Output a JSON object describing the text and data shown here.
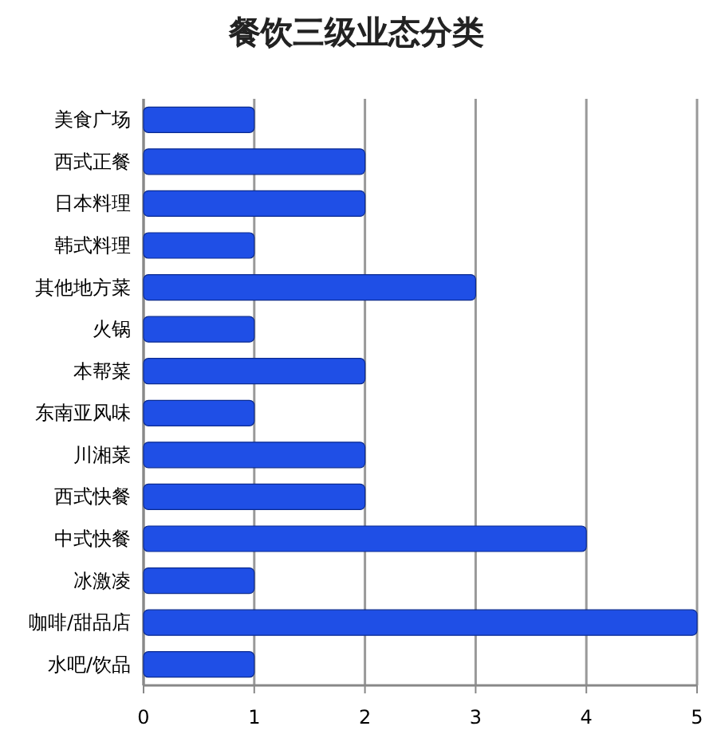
{
  "chart_data": {
    "type": "bar",
    "orientation": "horizontal",
    "title": "餐饮三级业态分类",
    "categories": [
      "美食广场",
      "西式正餐",
      "日本料理",
      "韩式料理",
      "其他地方菜",
      "火锅",
      "本帮菜",
      "东南亚风味",
      "川湘菜",
      "西式快餐",
      "中式快餐",
      "冰激凌",
      "咖啡/甜品店",
      "水吧/饮品"
    ],
    "values": [
      1,
      2,
      2,
      1,
      3,
      1,
      2,
      1,
      2,
      2,
      4,
      1,
      5,
      1
    ],
    "color": "#1f4fe6",
    "xlim": [
      0,
      5
    ],
    "xticks": [
      0,
      1,
      2,
      3,
      4,
      5
    ],
    "grid": "x"
  }
}
